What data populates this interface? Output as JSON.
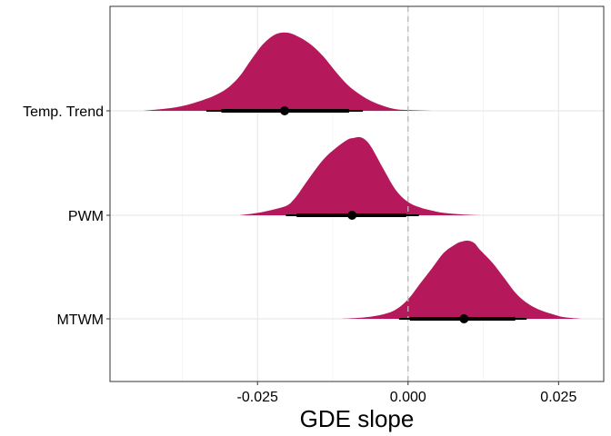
{
  "chart_data": {
    "type": "area",
    "xlabel": "GDE slope",
    "ylabel": "",
    "xlim": [
      -0.0495,
      0.0325
    ],
    "x_ticks": [
      {
        "value": -0.025,
        "label": "-0.025"
      },
      {
        "value": 0.0,
        "label": "0.000"
      },
      {
        "value": 0.025,
        "label": "0.025"
      }
    ],
    "x_minor": [
      -0.0375,
      -0.0125,
      0.0125
    ],
    "reference_line": {
      "x": 0.0,
      "style": "dashed"
    },
    "grid": true,
    "fill_color": "#b5195b",
    "point_color": "#000000",
    "series": [
      {
        "label": "Temp. Trend",
        "density_x": [
          -0.044,
          -0.04,
          -0.037,
          -0.034,
          -0.032,
          -0.03,
          -0.028,
          -0.026,
          -0.024,
          -0.022,
          -0.02,
          -0.018,
          -0.016,
          -0.014,
          -0.012,
          -0.01,
          -0.008,
          -0.006,
          -0.004,
          -0.002,
          0.0,
          0.004
        ],
        "density_y": [
          0.0,
          0.03,
          0.07,
          0.14,
          0.2,
          0.29,
          0.44,
          0.66,
          0.86,
          0.98,
          1.0,
          0.94,
          0.84,
          0.69,
          0.5,
          0.33,
          0.21,
          0.12,
          0.06,
          0.02,
          0.01,
          0.0
        ],
        "point": -0.0205,
        "interval_66": [
          -0.031,
          -0.0098
        ],
        "interval_95": [
          -0.0335,
          -0.0075
        ]
      },
      {
        "label": "PWM",
        "density_x": [
          -0.028,
          -0.025,
          -0.022,
          -0.02,
          -0.019,
          -0.018,
          -0.016,
          -0.014,
          -0.012,
          -0.01,
          -0.009,
          -0.008,
          -0.007,
          -0.006,
          -0.004,
          -0.002,
          0.0,
          0.002,
          0.004,
          0.006,
          0.009,
          0.012
        ],
        "density_y": [
          0.0,
          0.03,
          0.08,
          0.13,
          0.2,
          0.3,
          0.52,
          0.72,
          0.86,
          0.97,
          0.99,
          1.0,
          0.96,
          0.86,
          0.58,
          0.32,
          0.17,
          0.1,
          0.06,
          0.03,
          0.01,
          0.0
        ],
        "point": -0.0093,
        "interval_66": [
          -0.0185,
          -0.0003
        ],
        "interval_95": [
          -0.0203,
          0.0018
        ]
      },
      {
        "label": "MTWM",
        "density_x": [
          -0.011,
          -0.007,
          -0.004,
          -0.002,
          0.0,
          0.002,
          0.004,
          0.006,
          0.008,
          0.009,
          0.01,
          0.011,
          0.012,
          0.014,
          0.016,
          0.018,
          0.02,
          0.022,
          0.024,
          0.026,
          0.029
        ],
        "density_y": [
          0.0,
          0.02,
          0.06,
          0.12,
          0.25,
          0.45,
          0.65,
          0.85,
          0.96,
          0.99,
          1.0,
          0.97,
          0.88,
          0.72,
          0.52,
          0.32,
          0.19,
          0.11,
          0.06,
          0.02,
          0.0
        ],
        "point": 0.0093,
        "interval_66": [
          0.0003,
          0.0178
        ],
        "interval_95": [
          -0.0015,
          0.0197
        ]
      }
    ]
  }
}
